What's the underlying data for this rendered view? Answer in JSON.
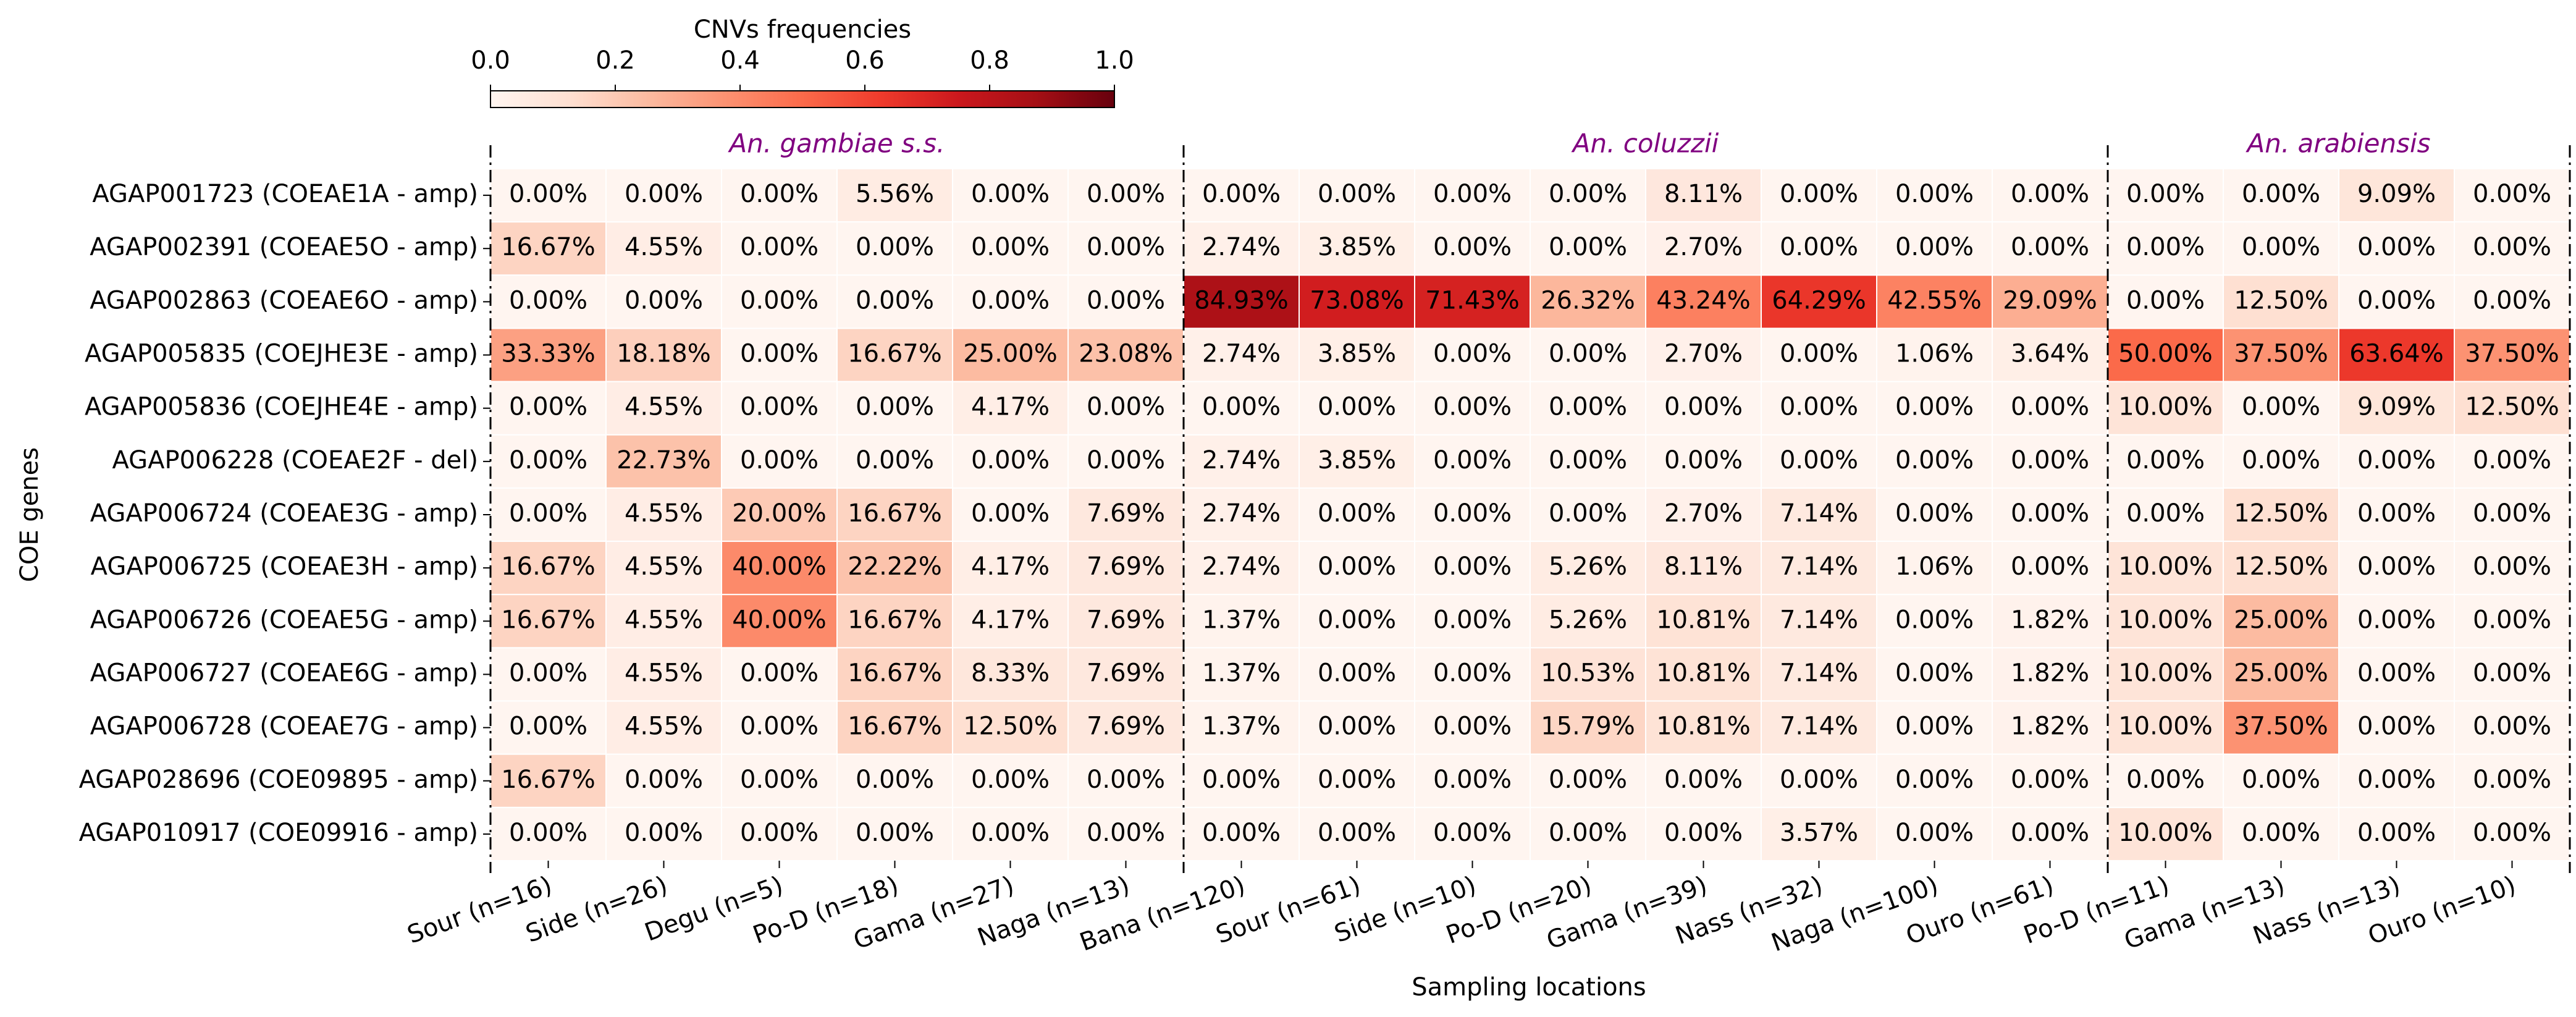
{
  "chart_data": {
    "type": "heatmap",
    "colorbar_label": "CNVs frequencies",
    "colormap": "Reds",
    "clim": [
      0,
      1
    ],
    "cticks": [
      {
        "value": 0,
        "label": "0.0"
      },
      {
        "value": 0.2,
        "label": "0.2"
      },
      {
        "value": 0.4,
        "label": "0.4"
      },
      {
        "value": 0.6,
        "label": "0.6"
      },
      {
        "value": 0.8,
        "label": "0.8"
      },
      {
        "value": 1,
        "label": "1.0"
      }
    ],
    "x_label": "Sampling locations",
    "y_label": "COE genes",
    "groups": [
      {
        "name": "An. gambiae s.s.",
        "categories": [
          "Sour (n=16)",
          "Side (n=26)",
          "Degu (n=5)",
          "Po-D (n=18)",
          "Gama (n=27)",
          "Naga (n=13)"
        ]
      },
      {
        "name": "An. coluzzii",
        "categories": [
          "Bana (n=120)",
          "Sour (n=61)",
          "Side (n=10)",
          "Po-D (n=20)",
          "Gama (n=39)",
          "Nass (n=32)",
          "Naga (n=100)",
          "Ouro (n=61)"
        ]
      },
      {
        "name": "An. arabiensis",
        "categories": [
          "Po-D (n=11)",
          "Gama (n=13)",
          "Nass (n=13)",
          "Ouro (n=10)"
        ]
      }
    ],
    "rows": [
      "AGAP001723 (COEAE1A - amp)",
      "AGAP002391 (COEAE5O - amp)",
      "AGAP002863 (COEAE6O - amp)",
      "AGAP005835 (COEJHE3E - amp)",
      "AGAP005836 (COEJHE4E - amp)",
      "AGAP006228 (COEAE2F - del)",
      "AGAP006724 (COEAE3G - amp)",
      "AGAP006725 (COEAE3H - amp)",
      "AGAP006726 (COEAE5G - amp)",
      "AGAP006727 (COEAE6G - amp)",
      "AGAP006728 (COEAE7G - amp)",
      "AGAP028696 (COE09895 - amp)",
      "AGAP010917 (COE09916 - amp)"
    ],
    "values": [
      [
        0,
        0,
        0,
        0.0556,
        0,
        0,
        0,
        0,
        0,
        0,
        0.0811,
        0,
        0,
        0,
        0,
        0,
        0.0909,
        0
      ],
      [
        0.1667,
        0.0455,
        0,
        0,
        0,
        0,
        0.0274,
        0.0385,
        0,
        0,
        0.027,
        0,
        0,
        0,
        0,
        0,
        0,
        0
      ],
      [
        0,
        0,
        0,
        0,
        0,
        0,
        0.8493,
        0.7308,
        0.7143,
        0.2632,
        0.4324,
        0.6429,
        0.4255,
        0.2909,
        0,
        0.125,
        0,
        0
      ],
      [
        0.3333,
        0.1818,
        0,
        0.1667,
        0.25,
        0.2308,
        0.0274,
        0.0385,
        0,
        0,
        0.027,
        0,
        0.0106,
        0.0364,
        0.5,
        0.375,
        0.6364,
        0.375
      ],
      [
        0,
        0.0455,
        0,
        0,
        0.0417,
        0,
        0,
        0,
        0,
        0,
        0,
        0,
        0,
        0,
        0.1,
        0,
        0.0909,
        0.125
      ],
      [
        0,
        0.2273,
        0,
        0,
        0,
        0,
        0.0274,
        0.0385,
        0,
        0,
        0,
        0,
        0,
        0,
        0,
        0,
        0,
        0
      ],
      [
        0,
        0.0455,
        0.2,
        0.1667,
        0,
        0.0769,
        0.0274,
        0,
        0,
        0,
        0.027,
        0.0714,
        0,
        0,
        0,
        0.125,
        0,
        0
      ],
      [
        0.1667,
        0.0455,
        0.4,
        0.2222,
        0.0417,
        0.0769,
        0.0274,
        0,
        0,
        0.0526,
        0.0811,
        0.0714,
        0.0106,
        0,
        0.1,
        0.125,
        0,
        0
      ],
      [
        0.1667,
        0.0455,
        0.4,
        0.1667,
        0.0417,
        0.0769,
        0.0137,
        0,
        0,
        0.0526,
        0.1081,
        0.0714,
        0,
        0.0182,
        0.1,
        0.25,
        0,
        0
      ],
      [
        0,
        0.0455,
        0,
        0.1667,
        0.0833,
        0.0769,
        0.0137,
        0,
        0,
        0.1053,
        0.1081,
        0.0714,
        0,
        0.0182,
        0.1,
        0.25,
        0,
        0
      ],
      [
        0,
        0.0455,
        0,
        0.1667,
        0.125,
        0.0769,
        0.0137,
        0,
        0,
        0.1579,
        0.1081,
        0.0714,
        0,
        0.0182,
        0.1,
        0.375,
        0,
        0
      ],
      [
        0.1667,
        0,
        0,
        0,
        0,
        0,
        0,
        0,
        0,
        0,
        0,
        0,
        0,
        0,
        0,
        0,
        0,
        0
      ],
      [
        0,
        0,
        0,
        0,
        0,
        0,
        0,
        0,
        0,
        0,
        0,
        0.0357,
        0,
        0,
        0.1,
        0,
        0,
        0
      ]
    ],
    "value_labels": [
      [
        "0.00%",
        "0.00%",
        "0.00%",
        "5.56%",
        "0.00%",
        "0.00%",
        "0.00%",
        "0.00%",
        "0.00%",
        "0.00%",
        "8.11%",
        "0.00%",
        "0.00%",
        "0.00%",
        "0.00%",
        "0.00%",
        "9.09%",
        "0.00%"
      ],
      [
        "16.67%",
        "4.55%",
        "0.00%",
        "0.00%",
        "0.00%",
        "0.00%",
        "2.74%",
        "3.85%",
        "0.00%",
        "0.00%",
        "2.70%",
        "0.00%",
        "0.00%",
        "0.00%",
        "0.00%",
        "0.00%",
        "0.00%",
        "0.00%"
      ],
      [
        "0.00%",
        "0.00%",
        "0.00%",
        "0.00%",
        "0.00%",
        "0.00%",
        "84.93%",
        "73.08%",
        "71.43%",
        "26.32%",
        "43.24%",
        "64.29%",
        "42.55%",
        "29.09%",
        "0.00%",
        "12.50%",
        "0.00%",
        "0.00%"
      ],
      [
        "33.33%",
        "18.18%",
        "0.00%",
        "16.67%",
        "25.00%",
        "23.08%",
        "2.74%",
        "3.85%",
        "0.00%",
        "0.00%",
        "2.70%",
        "0.00%",
        "1.06%",
        "3.64%",
        "50.00%",
        "37.50%",
        "63.64%",
        "37.50%"
      ],
      [
        "0.00%",
        "4.55%",
        "0.00%",
        "0.00%",
        "4.17%",
        "0.00%",
        "0.00%",
        "0.00%",
        "0.00%",
        "0.00%",
        "0.00%",
        "0.00%",
        "0.00%",
        "0.00%",
        "10.00%",
        "0.00%",
        "9.09%",
        "12.50%"
      ],
      [
        "0.00%",
        "22.73%",
        "0.00%",
        "0.00%",
        "0.00%",
        "0.00%",
        "2.74%",
        "3.85%",
        "0.00%",
        "0.00%",
        "0.00%",
        "0.00%",
        "0.00%",
        "0.00%",
        "0.00%",
        "0.00%",
        "0.00%",
        "0.00%"
      ],
      [
        "0.00%",
        "4.55%",
        "20.00%",
        "16.67%",
        "0.00%",
        "7.69%",
        "2.74%",
        "0.00%",
        "0.00%",
        "0.00%",
        "2.70%",
        "7.14%",
        "0.00%",
        "0.00%",
        "0.00%",
        "12.50%",
        "0.00%",
        "0.00%"
      ],
      [
        "16.67%",
        "4.55%",
        "40.00%",
        "22.22%",
        "4.17%",
        "7.69%",
        "2.74%",
        "0.00%",
        "0.00%",
        "5.26%",
        "8.11%",
        "7.14%",
        "1.06%",
        "0.00%",
        "10.00%",
        "12.50%",
        "0.00%",
        "0.00%"
      ],
      [
        "16.67%",
        "4.55%",
        "40.00%",
        "16.67%",
        "4.17%",
        "7.69%",
        "1.37%",
        "0.00%",
        "0.00%",
        "5.26%",
        "10.81%",
        "7.14%",
        "0.00%",
        "1.82%",
        "10.00%",
        "25.00%",
        "0.00%",
        "0.00%"
      ],
      [
        "0.00%",
        "4.55%",
        "0.00%",
        "16.67%",
        "8.33%",
        "7.69%",
        "1.37%",
        "0.00%",
        "0.00%",
        "10.53%",
        "10.81%",
        "7.14%",
        "0.00%",
        "1.82%",
        "10.00%",
        "25.00%",
        "0.00%",
        "0.00%"
      ],
      [
        "0.00%",
        "4.55%",
        "0.00%",
        "16.67%",
        "12.50%",
        "7.69%",
        "1.37%",
        "0.00%",
        "0.00%",
        "15.79%",
        "10.81%",
        "7.14%",
        "0.00%",
        "1.82%",
        "10.00%",
        "37.50%",
        "0.00%",
        "0.00%"
      ],
      [
        "16.67%",
        "0.00%",
        "0.00%",
        "0.00%",
        "0.00%",
        "0.00%",
        "0.00%",
        "0.00%",
        "0.00%",
        "0.00%",
        "0.00%",
        "0.00%",
        "0.00%",
        "0.00%",
        "0.00%",
        "0.00%",
        "0.00%",
        "0.00%"
      ],
      [
        "0.00%",
        "0.00%",
        "0.00%",
        "0.00%",
        "0.00%",
        "0.00%",
        "0.00%",
        "0.00%",
        "0.00%",
        "0.00%",
        "0.00%",
        "3.57%",
        "0.00%",
        "0.00%",
        "10.00%",
        "0.00%",
        "0.00%",
        "0.00%"
      ]
    ]
  }
}
